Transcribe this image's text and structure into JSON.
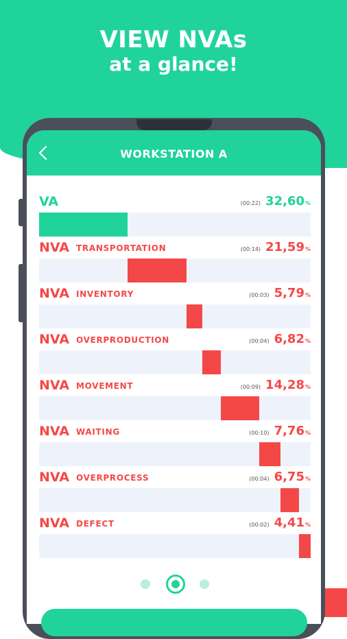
{
  "colors": {
    "green": "#20d39a",
    "red": "#f44848"
  },
  "headline": {
    "line1": "VIEW NVAs",
    "line2": "at a glance!"
  },
  "screen": {
    "title": "WORKSTATION A",
    "back_icon": "chevron-left-icon"
  },
  "rows": [
    {
      "tag": "VA",
      "category": "",
      "time": "(00:22)",
      "percent": "32,60",
      "percent_sign": "%",
      "start": 0.0,
      "value": 0.326
    },
    {
      "tag": "NVA",
      "category": "TRANSPORTATION",
      "time": "(00:14)",
      "percent": "21,59",
      "percent_sign": "%",
      "start": 0.326,
      "value": 0.2159
    },
    {
      "tag": "NVA",
      "category": "INVENTORY",
      "time": "(00:03)",
      "percent": "5,79",
      "percent_sign": "%",
      "start": 0.5419,
      "value": 0.0579
    },
    {
      "tag": "NVA",
      "category": "OVERPRODUCTION",
      "time": "(00:04)",
      "percent": "6,82",
      "percent_sign": "%",
      "start": 0.5998,
      "value": 0.0682
    },
    {
      "tag": "NVA",
      "category": "MOVEMENT",
      "time": "(00:09)",
      "percent": "14,28",
      "percent_sign": "%",
      "start": 0.668,
      "value": 0.1428
    },
    {
      "tag": "NVA",
      "category": "WAITING",
      "time": "(00:10)",
      "percent": "7,76",
      "percent_sign": "%",
      "start": 0.8108,
      "value": 0.0776
    },
    {
      "tag": "NVA",
      "category": "OVERPROCESS",
      "time": "(00:04)",
      "percent": "6,75",
      "percent_sign": "%",
      "start": 0.8884,
      "value": 0.0675
    },
    {
      "tag": "NVA",
      "category": "DEFECT",
      "time": "(00:02)",
      "percent": "4,41",
      "percent_sign": "%",
      "start": 0.9559,
      "value": 0.0441
    }
  ],
  "pager": {
    "pages": 3,
    "current": 2
  }
}
